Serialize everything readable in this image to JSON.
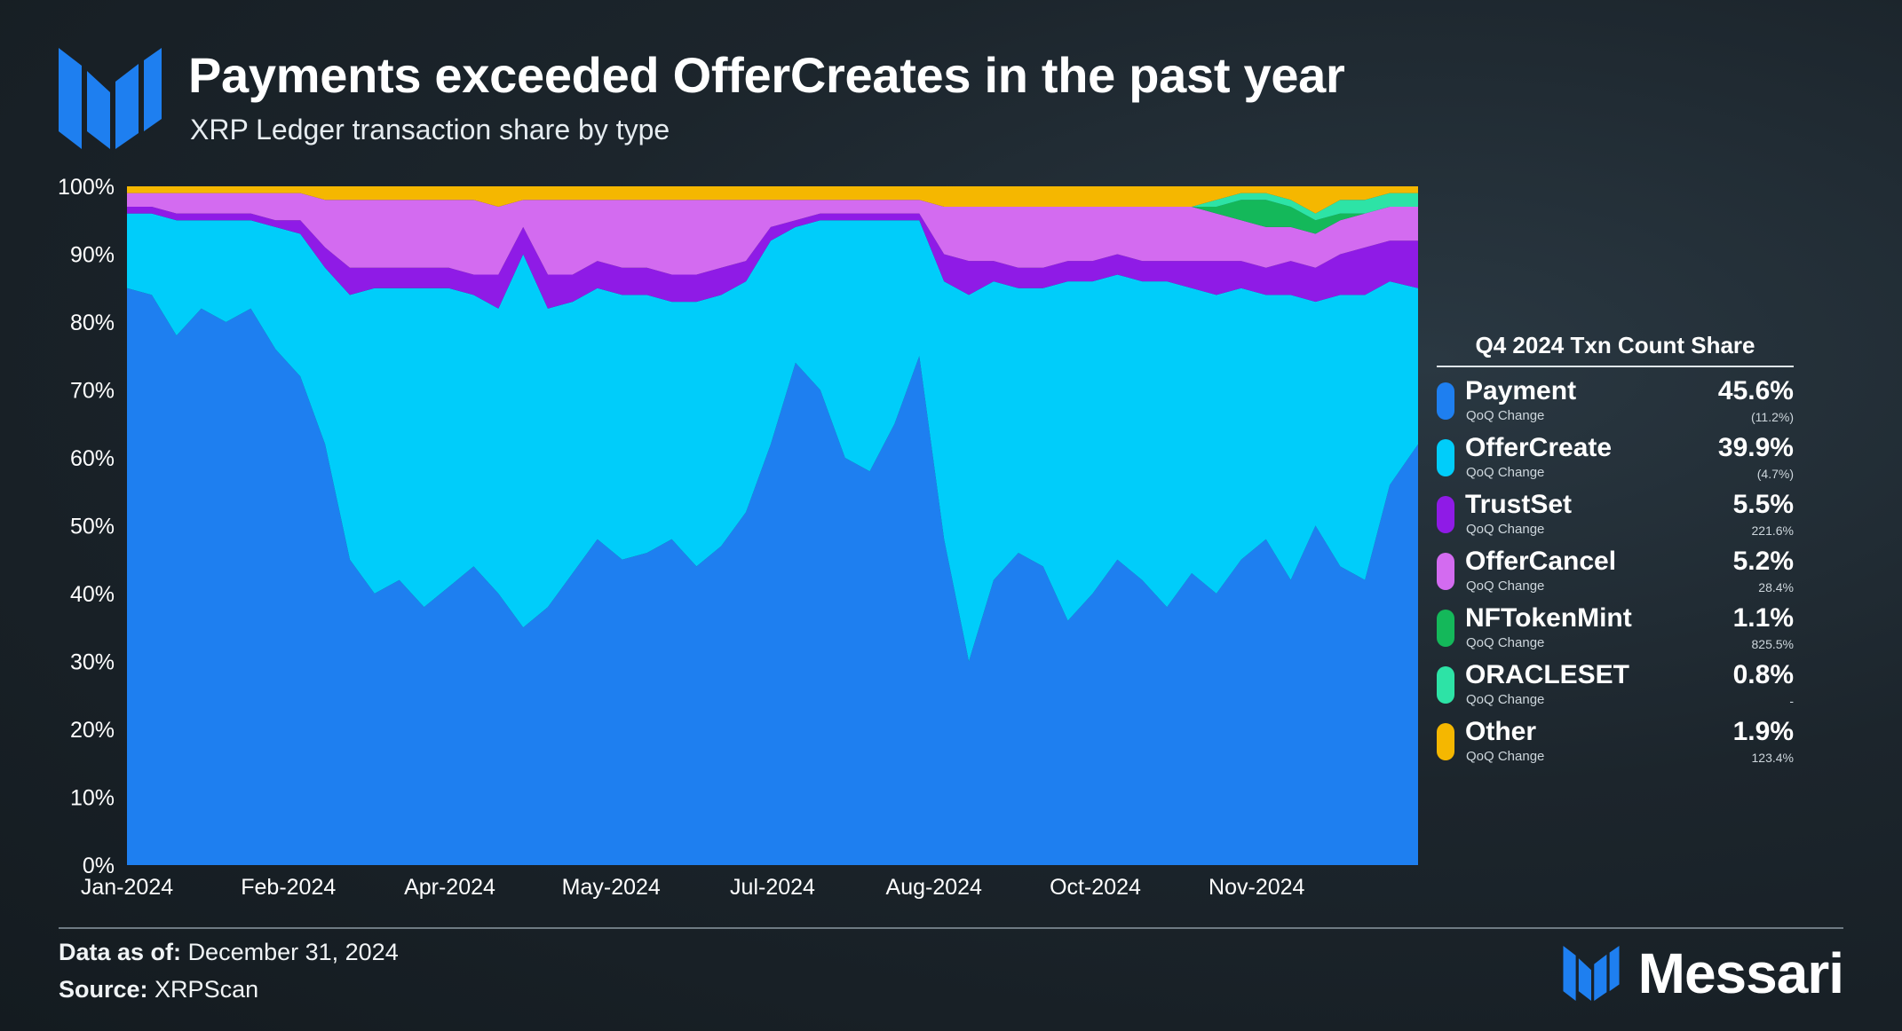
{
  "header": {
    "title": "Payments exceeded OfferCreates in the past year",
    "subtitle": "XRP Ledger transaction share by type",
    "logo": "messari-m-logo"
  },
  "colors": {
    "Payment": "#1e7ff0",
    "OfferCreate": "#00cdfa",
    "TrustSet": "#8f1be6",
    "OfferCancel": "#d36bf0",
    "NFTokenMint": "#14b85a",
    "ORACLESET": "#2de3a6",
    "Other": "#f5b700"
  },
  "chart_data": {
    "type": "area",
    "stacked": true,
    "percent": true,
    "ylim": [
      0,
      100
    ],
    "yticks": [
      "0%",
      "10%",
      "20%",
      "30%",
      "40%",
      "50%",
      "60%",
      "70%",
      "80%",
      "90%",
      "100%"
    ],
    "xticks": [
      "Jan-2024",
      "Feb-2024",
      "Apr-2024",
      "May-2024",
      "Jul-2024",
      "Aug-2024",
      "Oct-2024",
      "Nov-2024"
    ],
    "x_start": "2024-01-01",
    "x_end": "2024-12-31",
    "x": [
      "2024-01-01",
      "2024-01-08",
      "2024-01-15",
      "2024-01-22",
      "2024-01-29",
      "2024-02-05",
      "2024-02-12",
      "2024-02-19",
      "2024-02-26",
      "2024-03-04",
      "2024-03-11",
      "2024-03-18",
      "2024-03-25",
      "2024-04-01",
      "2024-04-08",
      "2024-04-15",
      "2024-04-22",
      "2024-04-29",
      "2024-05-06",
      "2024-05-13",
      "2024-05-20",
      "2024-05-27",
      "2024-06-03",
      "2024-06-10",
      "2024-06-17",
      "2024-06-24",
      "2024-07-01",
      "2024-07-08",
      "2024-07-15",
      "2024-07-22",
      "2024-07-29",
      "2024-08-05",
      "2024-08-12",
      "2024-08-19",
      "2024-08-26",
      "2024-09-02",
      "2024-09-09",
      "2024-09-16",
      "2024-09-23",
      "2024-09-30",
      "2024-10-07",
      "2024-10-14",
      "2024-10-21",
      "2024-10-28",
      "2024-11-04",
      "2024-11-11",
      "2024-11-18",
      "2024-11-25",
      "2024-12-02",
      "2024-12-09",
      "2024-12-16",
      "2024-12-23",
      "2024-12-31"
    ],
    "series": [
      {
        "name": "Payment",
        "values": [
          85,
          84,
          78,
          82,
          80,
          82,
          76,
          72,
          62,
          45,
          40,
          42,
          38,
          41,
          44,
          40,
          35,
          38,
          43,
          48,
          45,
          46,
          48,
          44,
          47,
          52,
          62,
          74,
          70,
          60,
          58,
          65,
          75,
          48,
          30,
          42,
          46,
          44,
          36,
          40,
          45,
          42,
          38,
          43,
          40,
          45,
          48,
          42,
          50,
          44,
          42,
          56,
          62
        ]
      },
      {
        "name": "OfferCreate",
        "values": [
          11,
          12,
          17,
          13,
          15,
          13,
          18,
          21,
          26,
          39,
          45,
          43,
          47,
          44,
          40,
          42,
          55,
          44,
          40,
          37,
          39,
          38,
          35,
          39,
          37,
          34,
          30,
          20,
          25,
          35,
          37,
          30,
          20,
          38,
          54,
          44,
          39,
          41,
          50,
          46,
          42,
          44,
          48,
          42,
          44,
          40,
          36,
          42,
          33,
          40,
          42,
          30,
          23
        ]
      },
      {
        "name": "TrustSet",
        "values": [
          1,
          1,
          1,
          1,
          1,
          1,
          1,
          2,
          3,
          4,
          3,
          3,
          3,
          3,
          3,
          5,
          4,
          5,
          4,
          4,
          4,
          4,
          4,
          4,
          4,
          3,
          2,
          1,
          1,
          1,
          1,
          1,
          1,
          4,
          5,
          3,
          3,
          3,
          3,
          3,
          3,
          3,
          3,
          4,
          5,
          4,
          4,
          5,
          5,
          6,
          7,
          6,
          7
        ]
      },
      {
        "name": "OfferCancel",
        "values": [
          2,
          2,
          3,
          3,
          3,
          3,
          4,
          4,
          7,
          10,
          10,
          10,
          10,
          10,
          11,
          10,
          4,
          11,
          11,
          9,
          10,
          10,
          11,
          11,
          10,
          9,
          4,
          3,
          2,
          2,
          2,
          2,
          2,
          7,
          8,
          8,
          9,
          9,
          8,
          8,
          7,
          8,
          8,
          8,
          7,
          6,
          6,
          5,
          5,
          5,
          5,
          5,
          5
        ]
      },
      {
        "name": "NFTokenMint",
        "values": [
          0,
          0,
          0,
          0,
          0,
          0,
          0,
          0,
          0,
          0,
          0,
          0,
          0,
          0,
          0,
          0,
          0,
          0,
          0,
          0,
          0,
          0,
          0,
          0,
          0,
          0,
          0,
          0,
          0,
          0,
          0,
          0,
          0,
          0,
          0,
          0,
          0,
          0,
          0,
          0,
          0,
          0,
          0,
          0,
          1,
          3,
          4,
          3,
          2,
          1,
          0,
          0,
          0
        ]
      },
      {
        "name": "ORACLESET",
        "values": [
          0,
          0,
          0,
          0,
          0,
          0,
          0,
          0,
          0,
          0,
          0,
          0,
          0,
          0,
          0,
          0,
          0,
          0,
          0,
          0,
          0,
          0,
          0,
          0,
          0,
          0,
          0,
          0,
          0,
          0,
          0,
          0,
          0,
          0,
          0,
          0,
          0,
          0,
          0,
          0,
          0,
          0,
          0,
          0,
          1,
          1,
          1,
          1,
          1,
          2,
          2,
          2,
          2
        ]
      },
      {
        "name": "Other",
        "values": [
          1,
          1,
          1,
          1,
          1,
          1,
          1,
          1,
          2,
          2,
          2,
          2,
          2,
          2,
          2,
          3,
          2,
          2,
          2,
          2,
          2,
          2,
          2,
          2,
          2,
          2,
          2,
          2,
          2,
          2,
          2,
          2,
          2,
          3,
          3,
          3,
          3,
          3,
          3,
          3,
          3,
          3,
          3,
          3,
          2,
          1,
          1,
          2,
          4,
          2,
          2,
          1,
          1
        ]
      }
    ]
  },
  "legend": {
    "title": "Q4 2024 Txn Count Share",
    "items": [
      {
        "name": "Payment",
        "sub": "QoQ Change",
        "value": "45.6%",
        "change": "(11.2%)"
      },
      {
        "name": "OfferCreate",
        "sub": "QoQ Change",
        "value": "39.9%",
        "change": "(4.7%)"
      },
      {
        "name": "TrustSet",
        "sub": "QoQ Change",
        "value": "5.5%",
        "change": "221.6%"
      },
      {
        "name": "OfferCancel",
        "sub": "QoQ Change",
        "value": "5.2%",
        "change": "28.4%"
      },
      {
        "name": "NFTokenMint",
        "sub": "QoQ Change",
        "value": "1.1%",
        "change": "825.5%"
      },
      {
        "name": "ORACLESET",
        "sub": "QoQ Change",
        "value": "0.8%",
        "change": "-"
      },
      {
        "name": "Other",
        "sub": "QoQ Change",
        "value": "1.9%",
        "change": "123.4%"
      }
    ]
  },
  "footer": {
    "data_as_of_label": "Data as of:",
    "data_as_of_value": "December 31, 2024",
    "source_label": "Source:",
    "source_value": "XRPScan",
    "brand": "Messari"
  }
}
